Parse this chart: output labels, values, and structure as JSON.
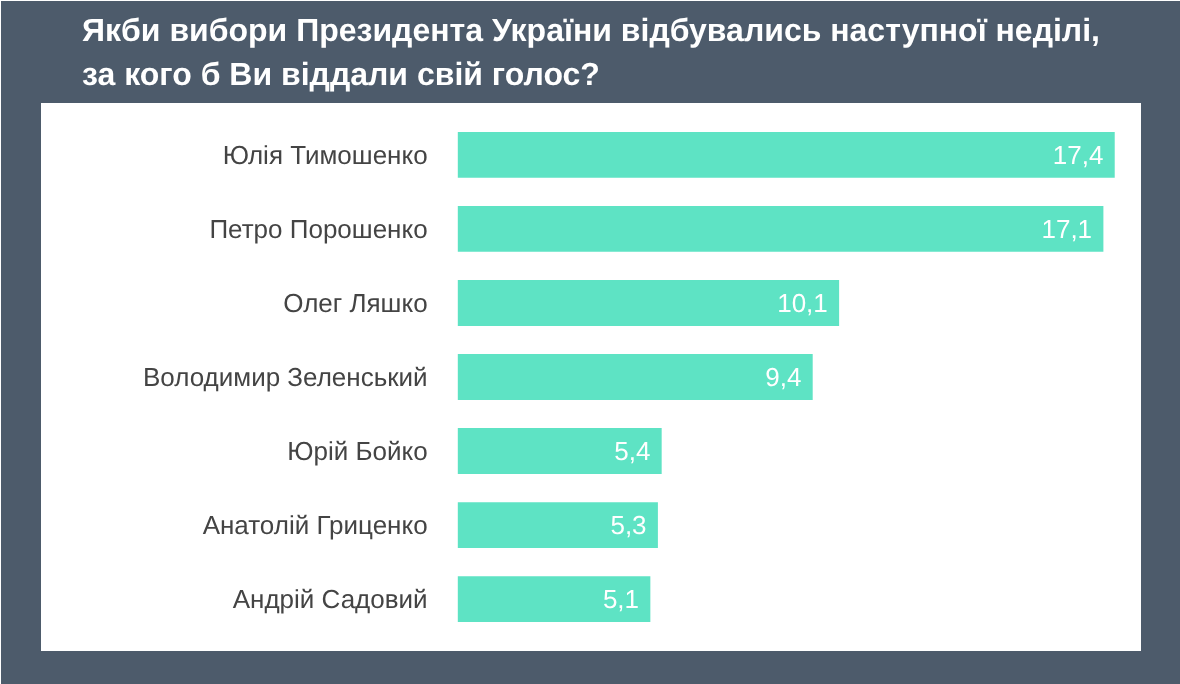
{
  "chart_data": {
    "type": "bar",
    "orientation": "horizontal",
    "title": "Якби вибори Президента України відбувались наступної неділі, за кого б Ви віддали свій голос?",
    "categories": [
      "Юлія Тимошенко",
      "Петро Порошенко",
      "Олег Ляшко",
      "Володимир Зеленський",
      "Юрій Бойко",
      "Анатолій Гриценко",
      "Андрій Садовий"
    ],
    "values": [
      17.4,
      17.1,
      10.1,
      9.4,
      5.4,
      5.3,
      5.1
    ],
    "value_labels": [
      "17,4",
      "17,1",
      "10,1",
      "9,4",
      "5,4",
      "5,3",
      "5,1"
    ],
    "color": "#5ee3c4",
    "grid": false,
    "tick_labels": false
  }
}
